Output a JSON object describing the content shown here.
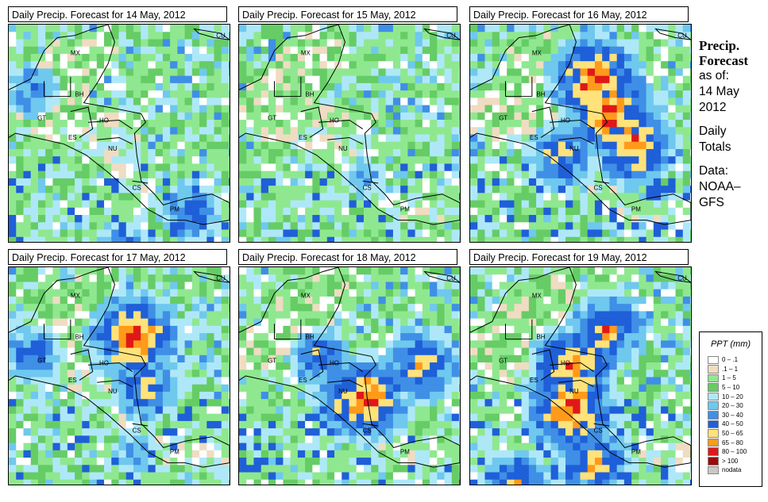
{
  "panels": [
    {
      "title": "Daily Precip. Forecast for  14 May, 2012",
      "seed": 11,
      "hot": [
        [
          0.1,
          0.3,
          0.4
        ],
        [
          0.8,
          0.85,
          0.5
        ],
        [
          0.5,
          1.0,
          0.35
        ]
      ]
    },
    {
      "title": "Daily Precip. Forecast for  15 May, 2012",
      "seed": 23,
      "hot": [
        [
          0.55,
          0.7,
          0.25
        ]
      ]
    },
    {
      "title": "Daily Precip. Forecast for  16 May, 2012",
      "seed": 37,
      "hot": [
        [
          0.55,
          0.25,
          0.9
        ],
        [
          0.62,
          0.4,
          0.9
        ],
        [
          0.72,
          0.55,
          0.8
        ],
        [
          0.4,
          0.6,
          0.6
        ]
      ]
    },
    {
      "title": "Daily Precip. Forecast for  17 May, 2012",
      "seed": 41,
      "hot": [
        [
          0.55,
          0.32,
          0.9
        ],
        [
          0.6,
          0.55,
          0.6
        ],
        [
          0.1,
          0.4,
          0.5
        ],
        [
          0.55,
          0.85,
          0.3
        ]
      ]
    },
    {
      "title": "Daily Precip. Forecast for  18 May, 2012",
      "seed": 53,
      "hot": [
        [
          0.8,
          0.45,
          0.7
        ],
        [
          0.55,
          0.6,
          0.9
        ],
        [
          0.35,
          0.42,
          0.5
        ]
      ]
    },
    {
      "title": "Daily Precip. Forecast for  19 May, 2012",
      "seed": 67,
      "hot": [
        [
          0.45,
          0.45,
          0.8
        ],
        [
          0.45,
          0.65,
          0.9
        ],
        [
          0.55,
          0.9,
          0.7
        ],
        [
          0.6,
          0.28,
          0.7
        ],
        [
          0.2,
          0.98,
          0.6
        ]
      ]
    }
  ],
  "map_labels": {
    "mx": "MX",
    "cu": "CU",
    "bh": "BH",
    "gt": "GT",
    "ho": "HO",
    "es": "ES",
    "nu": "NU",
    "cs": "CS",
    "pm": "PM"
  },
  "sidebar": {
    "heading1": "Precip.",
    "heading2": "Forecast",
    "asof": "as of:",
    "date1": "14 May",
    "date2": "2012",
    "daily1": "Daily",
    "daily2": "Totals",
    "data1": "Data:",
    "data2": "NOAA–",
    "data3": "GFS"
  },
  "legend": {
    "title": "PPT (mm)",
    "items": [
      {
        "label": "0 – .1",
        "color": "#ffffff"
      },
      {
        "label": ".1 – 1",
        "color": "#efdcc2"
      },
      {
        "label": "1 – 5",
        "color": "#8fe88f"
      },
      {
        "label": "5 – 10",
        "color": "#66cc66"
      },
      {
        "label": "10 – 20",
        "color": "#aee8f8"
      },
      {
        "label": "20 – 30",
        "color": "#6fc8ee"
      },
      {
        "label": "30 – 40",
        "color": "#3f8fe6"
      },
      {
        "label": "40 – 50",
        "color": "#1f5fd8"
      },
      {
        "label": "50 – 65",
        "color": "#ffe27a"
      },
      {
        "label": "65 – 80",
        "color": "#ff9a1a"
      },
      {
        "label": "80 – 100",
        "color": "#e01818"
      },
      {
        "label": "> 100",
        "color": "#9a0a0a"
      },
      {
        "label": "nodata",
        "color": "#c8c8c8"
      }
    ]
  }
}
